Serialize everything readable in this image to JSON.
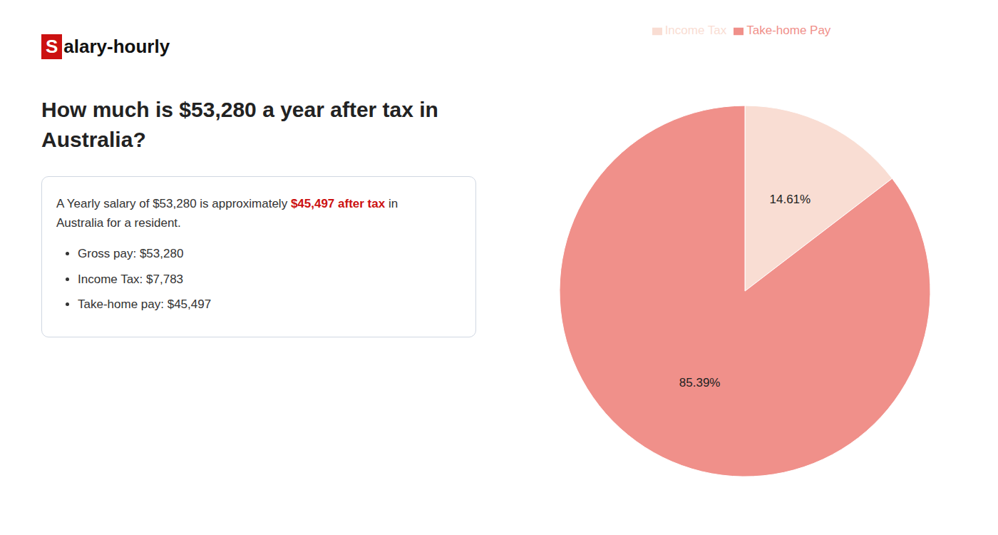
{
  "chart_data": {
    "type": "pie",
    "title": "How much is $53,280 a year after tax in\nAustralia?",
    "categories": [
      "Income Tax",
      "Take-home Pay"
    ],
    "values": [
      14.61,
      85.39
    ],
    "value_labels": [
      "14.61%",
      "85.39%"
    ],
    "colors": [
      "#f9ddd3",
      "#f0908a"
    ],
    "data_labels": true,
    "legend": "top",
    "annotations": [
      [
        {
          "text": "S",
          "color": "#cc1111"
        },
        {
          "text": "alary-hourly"
        }
      ],
      [
        {
          "text": "A Yearly salary of $53,280 is approximately "
        },
        {
          "text": "$45,497 after tax",
          "color": "#cc1111"
        },
        {
          "text": " in"
        }
      ],
      [
        {
          "text": "Australia for a resident."
        }
      ],
      [
        {
          "text": "Gross pay: $53,280"
        }
      ],
      [
        {
          "text": "Income Tax: $7,783"
        }
      ],
      [
        {
          "text": "Take-home pay: $45,497"
        }
      ]
    ]
  }
}
